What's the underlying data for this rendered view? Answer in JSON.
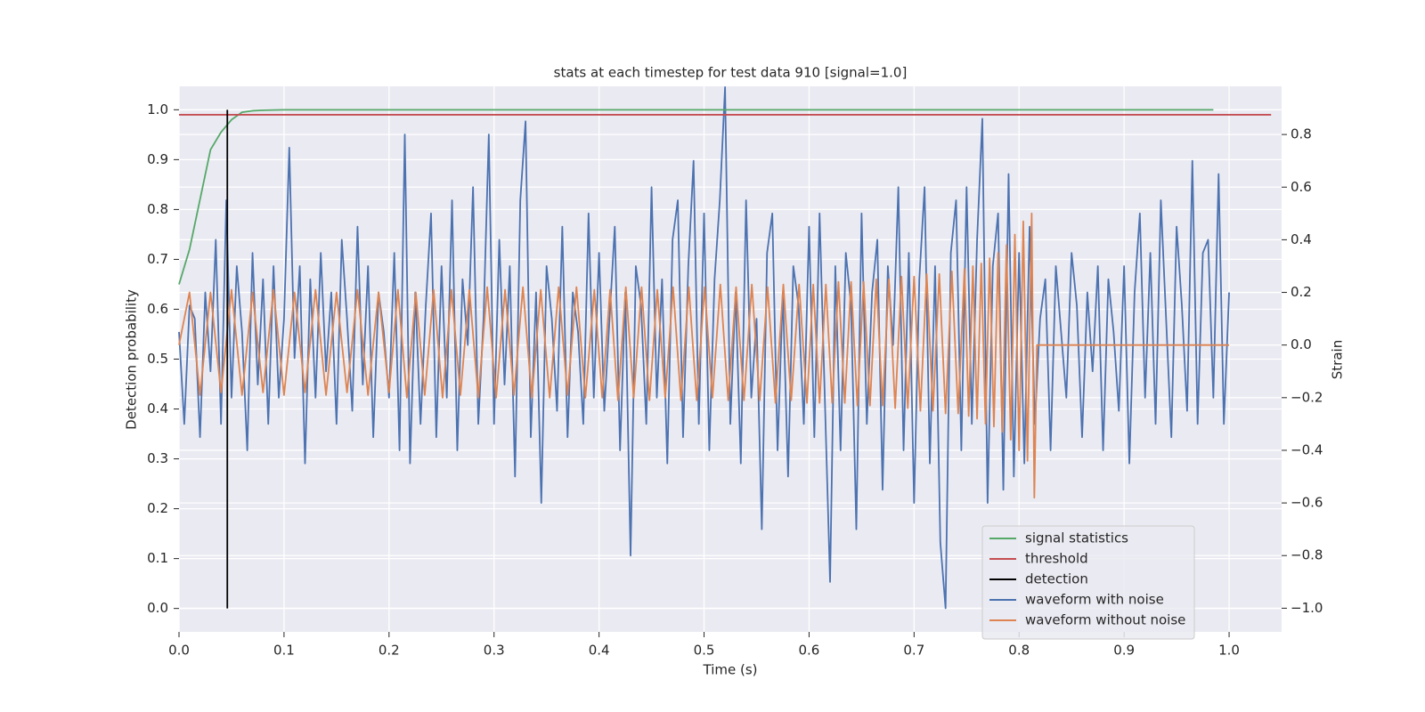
{
  "chart_data": {
    "type": "line",
    "title": "stats at each timestep for test data 910 [signal=1.0]",
    "xlabel": "Time (s)",
    "ylabel": "Detection probability",
    "y2label": "Strain",
    "xlim": [
      0,
      1.05
    ],
    "ylim": [
      -0.047,
      1.047
    ],
    "y2lim": [
      -1.09,
      0.983
    ],
    "xticks": [
      {
        "value": 0,
        "label": "0.0"
      },
      0.1,
      0.2,
      0.3,
      0.4,
      0.5,
      0.6,
      0.7,
      0.8,
      0.9,
      {
        "value": 1,
        "label": "1.0"
      }
    ],
    "yticks": [
      {
        "value": 0,
        "label": "0.0"
      },
      0.1,
      0.2,
      0.3,
      0.4,
      0.5,
      0.6,
      0.7,
      0.8,
      0.9,
      {
        "value": 1,
        "label": "1.0"
      }
    ],
    "y2ticks": [
      {
        "value": -1,
        "label": "−1.0"
      },
      {
        "value": -0.8,
        "label": "−0.8"
      },
      {
        "value": -0.6,
        "label": "−0.6"
      },
      {
        "value": -0.4,
        "label": "−0.4"
      },
      {
        "value": -0.2,
        "label": "−0.2"
      },
      {
        "value": 0,
        "label": "0.0"
      },
      0.2,
      0.4,
      0.6,
      0.8
    ],
    "grid": true,
    "legend": "lower right",
    "series": [
      {
        "name": "signal statistics",
        "color": "#55a868",
        "x": [
          0,
          0.01,
          0.02,
          0.03,
          0.04,
          0.05,
          0.06,
          0.07,
          0.08,
          0.1,
          0.985
        ],
        "values": [
          0.65,
          0.72,
          0.82,
          0.92,
          0.955,
          0.98,
          0.995,
          0.998,
          0.999,
          1.0,
          1.0
        ]
      },
      {
        "name": "threshold",
        "color": "#c44e52",
        "x": [
          0,
          1.04
        ],
        "values": [
          0.99,
          0.99
        ]
      },
      {
        "name": "detection",
        "color": "#000000",
        "x": [
          0.046,
          0.046
        ],
        "values": [
          0,
          1
        ]
      },
      {
        "name": "waveform with noise",
        "color": "#4c72b0",
        "axis": "y2",
        "x": [
          0,
          0.005,
          0.01,
          0.015,
          0.02,
          0.025,
          0.03,
          0.035,
          0.04,
          0.045,
          0.05,
          0.055,
          0.06,
          0.065,
          0.07,
          0.075,
          0.08,
          0.085,
          0.09,
          0.095,
          0.1,
          0.105,
          0.11,
          0.115,
          0.12,
          0.125,
          0.13,
          0.135,
          0.14,
          0.145,
          0.15,
          0.155,
          0.16,
          0.165,
          0.17,
          0.175,
          0.18,
          0.185,
          0.19,
          0.195,
          0.2,
          0.205,
          0.21,
          0.215,
          0.22,
          0.225,
          0.23,
          0.235,
          0.24,
          0.245,
          0.25,
          0.255,
          0.26,
          0.265,
          0.27,
          0.275,
          0.28,
          0.285,
          0.29,
          0.295,
          0.3,
          0.305,
          0.31,
          0.315,
          0.32,
          0.325,
          0.33,
          0.335,
          0.34,
          0.345,
          0.35,
          0.355,
          0.36,
          0.365,
          0.37,
          0.375,
          0.38,
          0.385,
          0.39,
          0.395,
          0.4,
          0.405,
          0.41,
          0.415,
          0.42,
          0.425,
          0.43,
          0.435,
          0.44,
          0.445,
          0.45,
          0.455,
          0.46,
          0.465,
          0.47,
          0.475,
          0.48,
          0.485,
          0.49,
          0.495,
          0.5,
          0.505,
          0.51,
          0.515,
          0.52,
          0.525,
          0.53,
          0.535,
          0.54,
          0.545,
          0.55,
          0.555,
          0.56,
          0.565,
          0.57,
          0.575,
          0.58,
          0.585,
          0.59,
          0.595,
          0.6,
          0.605,
          0.61,
          0.615,
          0.62,
          0.625,
          0.63,
          0.635,
          0.64,
          0.645,
          0.65,
          0.655,
          0.66,
          0.665,
          0.67,
          0.675,
          0.68,
          0.685,
          0.69,
          0.695,
          0.7,
          0.705,
          0.71,
          0.715,
          0.72,
          0.725,
          0.73,
          0.735,
          0.74,
          0.745,
          0.75,
          0.755,
          0.76,
          0.765,
          0.77,
          0.775,
          0.78,
          0.785,
          0.79,
          0.795,
          0.8,
          0.805,
          0.81,
          0.815,
          0.82,
          0.825,
          0.83,
          0.835,
          0.84,
          0.845,
          0.85,
          0.855,
          0.86,
          0.865,
          0.87,
          0.875,
          0.88,
          0.885,
          0.89,
          0.895,
          0.9,
          0.905,
          0.91,
          0.915,
          0.92,
          0.925,
          0.93,
          0.935,
          0.94,
          0.945,
          0.95,
          0.955,
          0.96,
          0.965,
          0.97,
          0.975,
          0.98,
          0.985,
          0.99,
          0.995,
          1.0
        ],
        "values": [
          0.05,
          -0.3,
          0.15,
          0.1,
          -0.35,
          0.2,
          -0.1,
          0.4,
          -0.3,
          0.55,
          -0.2,
          0.3,
          0.05,
          -0.4,
          0.35,
          -0.15,
          0.25,
          -0.3,
          0.3,
          -0.2,
          0.1,
          0.75,
          -0.05,
          0.3,
          -0.45,
          0.25,
          -0.2,
          0.35,
          -0.1,
          0.2,
          -0.3,
          0.4,
          0.1,
          -0.25,
          0.45,
          -0.15,
          0.3,
          -0.35,
          0.2,
          0.05,
          -0.2,
          0.35,
          -0.4,
          0.8,
          -0.45,
          0.2,
          -0.3,
          0.15,
          0.5,
          -0.35,
          0.3,
          -0.2,
          0.55,
          -0.4,
          0.25,
          0.0,
          0.6,
          -0.3,
          0.1,
          0.8,
          -0.3,
          0.4,
          -0.15,
          0.3,
          -0.5,
          0.55,
          0.85,
          -0.35,
          0.2,
          -0.6,
          0.3,
          0.1,
          -0.25,
          0.45,
          -0.35,
          0.2,
          0.05,
          -0.3,
          0.5,
          -0.2,
          0.35,
          -0.25,
          0.1,
          0.45,
          -0.4,
          0.2,
          -0.8,
          0.3,
          0.15,
          -0.3,
          0.6,
          -0.2,
          0.25,
          -0.45,
          0.4,
          0.55,
          -0.35,
          0.3,
          0.7,
          -0.3,
          0.5,
          -0.4,
          0.25,
          0.55,
          0.98,
          -0.3,
          0.2,
          -0.45,
          0.55,
          -0.2,
          0.1,
          -0.7,
          0.35,
          0.5,
          -0.4,
          0.2,
          -0.5,
          0.3,
          0.15,
          -0.3,
          0.45,
          -0.35,
          0.5,
          -0.2,
          -0.9,
          0.3,
          -0.4,
          0.35,
          0.15,
          -0.7,
          0.5,
          -0.3,
          0.2,
          0.4,
          -0.55,
          0.3,
          0.0,
          0.6,
          -0.4,
          0.35,
          -0.6,
          0.25,
          0.6,
          -0.45,
          0.3,
          -0.75,
          -1.0,
          0.35,
          0.55,
          -0.4,
          0.6,
          -0.3,
          0.4,
          0.86,
          -0.6,
          0.3,
          0.5,
          -0.55,
          0.65,
          -0.5,
          0.35,
          -0.45,
          0.45,
          -0.3,
          0.1,
          0.25,
          -0.4,
          0.3,
          0.05,
          -0.2,
          0.35,
          0.15,
          -0.35,
          0.2,
          -0.1,
          0.3,
          -0.4,
          0.25,
          0.05,
          -0.25,
          0.3,
          -0.45,
          0.2,
          0.5,
          -0.2,
          0.35,
          -0.3,
          0.55,
          0.1,
          -0.35,
          0.45,
          0.15,
          -0.25,
          0.7,
          -0.3,
          0.35,
          0.4,
          -0.2,
          0.65,
          -0.3,
          0.2
        ]
      },
      {
        "name": "waveform without noise",
        "color": "#dd8452",
        "axis": "y2",
        "x": [
          0,
          0.01,
          0.02,
          0.03,
          0.04,
          0.05,
          0.06,
          0.07,
          0.08,
          0.09,
          0.1,
          0.11,
          0.12,
          0.13,
          0.14,
          0.15,
          0.16,
          0.17,
          0.18,
          0.19,
          0.2,
          0.2085,
          0.217,
          0.2255,
          0.234,
          0.2425,
          0.251,
          0.2595,
          0.268,
          0.2765,
          0.285,
          0.2935,
          0.302,
          0.3105,
          0.319,
          0.3275,
          0.336,
          0.3445,
          0.353,
          0.3615,
          0.37,
          0.3785,
          0.387,
          0.3955,
          0.403,
          0.4105,
          0.418,
          0.4255,
          0.433,
          0.4405,
          0.448,
          0.4555,
          0.463,
          0.4705,
          0.478,
          0.4855,
          0.493,
          0.5005,
          0.508,
          0.5155,
          0.523,
          0.5305,
          0.538,
          0.5455,
          0.553,
          0.5605,
          0.568,
          0.5755,
          0.583,
          0.5905,
          0.598,
          0.604,
          0.61,
          0.616,
          0.622,
          0.628,
          0.634,
          0.64,
          0.646,
          0.652,
          0.658,
          0.664,
          0.67,
          0.676,
          0.682,
          0.688,
          0.694,
          0.7,
          0.706,
          0.712,
          0.718,
          0.724,
          0.73,
          0.736,
          0.742,
          0.748,
          0.752,
          0.756,
          0.76,
          0.764,
          0.768,
          0.772,
          0.776,
          0.78,
          0.784,
          0.788,
          0.792,
          0.796,
          0.8,
          0.804,
          0.808,
          0.812,
          0.8145,
          0.817,
          1.0
        ],
        "values": [
          0,
          0.2,
          -0.19,
          0.2,
          -0.18,
          0.21,
          -0.19,
          0.2,
          -0.18,
          0.21,
          -0.19,
          0.2,
          -0.18,
          0.21,
          -0.19,
          0.2,
          -0.18,
          0.21,
          -0.19,
          0.2,
          -0.18,
          0.21,
          -0.2,
          0.2,
          -0.19,
          0.21,
          -0.2,
          0.21,
          -0.19,
          0.21,
          -0.2,
          0.22,
          -0.2,
          0.21,
          -0.19,
          0.22,
          -0.2,
          0.21,
          -0.2,
          0.22,
          -0.19,
          0.22,
          -0.2,
          0.21,
          -0.2,
          0.21,
          -0.21,
          0.22,
          -0.2,
          0.22,
          -0.21,
          0.21,
          -0.2,
          0.22,
          -0.21,
          0.22,
          -0.21,
          0.22,
          -0.2,
          0.23,
          -0.21,
          0.22,
          -0.21,
          0.23,
          -0.21,
          0.22,
          -0.22,
          0.23,
          -0.21,
          0.23,
          -0.22,
          0.23,
          -0.22,
          0.23,
          -0.22,
          0.24,
          -0.22,
          0.24,
          -0.23,
          0.24,
          -0.23,
          0.25,
          -0.23,
          0.25,
          -0.24,
          0.26,
          -0.24,
          0.26,
          -0.25,
          0.27,
          -0.25,
          0.27,
          -0.26,
          0.28,
          -0.26,
          0.29,
          -0.27,
          0.3,
          -0.28,
          0.31,
          -0.3,
          0.33,
          -0.31,
          0.35,
          -0.33,
          0.38,
          -0.36,
          0.42,
          -0.4,
          0.47,
          -0.44,
          0.5,
          -0.58,
          0,
          0
        ]
      }
    ]
  }
}
